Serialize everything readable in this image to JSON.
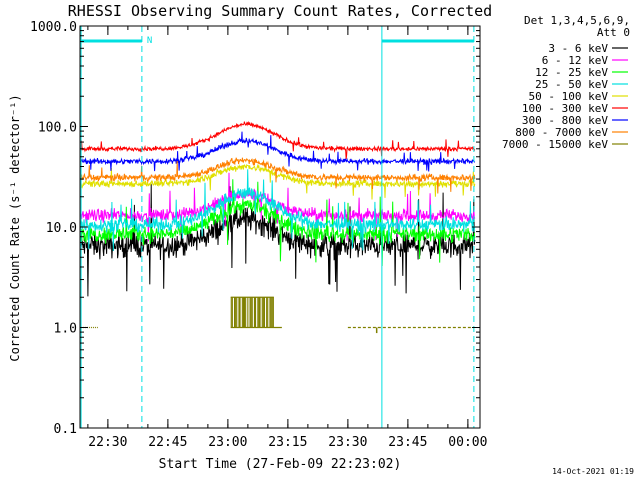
{
  "chart_data": {
    "type": "line",
    "title": "RHESSI Observing Summary Count Rates, Corrected",
    "xlabel": "Start Time (27-Feb-09 22:23:02)",
    "ylabel": "Corrected Count Rate (s⁻¹ detector⁻¹)",
    "yscale": "log",
    "ylim": [
      0.1,
      1000.0
    ],
    "x_unit": "minutes after 22:00 UTC, 27-Feb-2009",
    "xlim": [
      23.03,
      123.03
    ],
    "x_ticks": [
      30,
      45,
      60,
      75,
      90,
      105,
      120
    ],
    "x_tick_labels": [
      "22:30",
      "22:45",
      "23:00",
      "23:15",
      "23:30",
      "23:45",
      "00:00"
    ],
    "y_ticks": [
      0.1,
      1.0,
      10.0,
      100.0,
      1000.0
    ],
    "y_tick_labels": [
      "0.1",
      "1.0",
      "10.0",
      "100.0",
      "1000.0"
    ],
    "legend_header": [
      "Det 1,3,4,5,6,9,",
      "Att 0"
    ],
    "legend_position": "right",
    "series": [
      {
        "name": "3 - 6 keV",
        "color": "#000000",
        "level": 6.5,
        "peak": 12.0,
        "noise": 0.18
      },
      {
        "name": "6 - 12 keV",
        "color": "#ff00ff",
        "level": 13.0,
        "peak": 21.0,
        "noise": 0.09
      },
      {
        "name": "12 - 25 keV",
        "color": "#00ff00",
        "level": 8.5,
        "peak": 16.5,
        "noise": 0.12
      },
      {
        "name": "25 - 50 keV",
        "color": "#00e0e0",
        "level": 10.5,
        "peak": 22.0,
        "noise": 0.1
      },
      {
        "name": "50 - 100 keV",
        "color": "#e0e000",
        "level": 27.0,
        "peak": 40.0,
        "noise": 0.05
      },
      {
        "name": "100 - 300 keV",
        "color": "#ff0000",
        "level": 60.0,
        "peak": 105.0,
        "noise": 0.03
      },
      {
        "name": "300 - 800 keV",
        "color": "#0000ff",
        "level": 45.0,
        "peak": 72.0,
        "noise": 0.04
      },
      {
        "name": "800 - 7000 keV",
        "color": "#ff8000",
        "level": 31.0,
        "peak": 46.0,
        "noise": 0.05
      },
      {
        "name": "7000 - 15000 keV",
        "color": "#808000",
        "level": 1.0,
        "peak": 1.0,
        "noise": 0.0
      }
    ],
    "orbit_markers": {
      "solid_lines": [
        23.3,
        98.5
      ],
      "dashed_lines": [
        38.5,
        121.5
      ],
      "night_bars": [
        [
          23.3,
          38.5
        ],
        [
          98.5,
          121.5
        ]
      ],
      "night_bar_label": "N",
      "color": "#00e0e0"
    },
    "attenuator_blocks": {
      "range": [
        60.7,
        71.5
      ],
      "baseline": 1.0,
      "top": 2.0,
      "color": "#808000"
    },
    "timestamp": "14-Oct-2021 01:19"
  }
}
